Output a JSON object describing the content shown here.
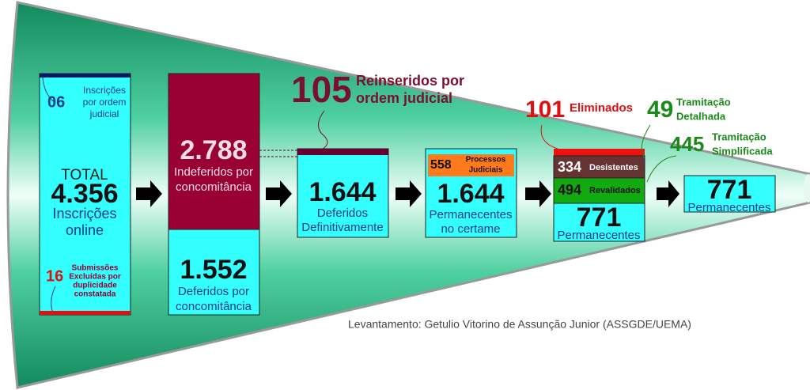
{
  "box_total": {
    "top_number": "06",
    "top_note": [
      "Inscrições",
      "por ordem",
      "judicial"
    ],
    "label_top": "TOTAL",
    "number": "4.356",
    "label": [
      "Inscrições",
      "online"
    ],
    "bottom_number": "16",
    "bottom_note": [
      "Submissões",
      "Excluídas por",
      "duplicidade",
      "constatada"
    ]
  },
  "box_indeferidos": {
    "number": "2.788",
    "label": [
      "Indeferidos por",
      "concomitância"
    ]
  },
  "box_deferidos_concomitancia": {
    "number": "1.552",
    "label": [
      "Deferidos por",
      "concomitância"
    ]
  },
  "reinseridos": {
    "number": "105",
    "label": [
      "Reinseridos por",
      "ordem judicial"
    ]
  },
  "box_deferidos": {
    "number": "1.644",
    "label": [
      "Deferidos",
      "Definitivamente"
    ]
  },
  "box_permanecentes": {
    "badge_number": "558",
    "badge_label": [
      "Processos",
      "Judiciais"
    ],
    "number": "1.644",
    "label": [
      "Permanecentes",
      "no certame"
    ]
  },
  "eliminados": {
    "number": "101",
    "label": "Eliminados"
  },
  "desistentes": {
    "number": "334",
    "label": "Desistentes"
  },
  "revalidados": {
    "number": "494",
    "label": "Revalidados"
  },
  "box_permanecentes_2": {
    "number": "771",
    "label": "Permanecentes"
  },
  "tramitacao_detalhada": {
    "number": "49",
    "label": [
      "Tramitação",
      "Detalhada"
    ]
  },
  "tramitacao_simplificada": {
    "number": "445",
    "label": [
      "Tramitação",
      "Simplificada"
    ]
  },
  "box_final": {
    "number": "771",
    "label": "Permanecentes"
  },
  "credit": "Levantamento: Getulio Vitorino de Assunção Junior (ASSGDE/UEMA)"
}
